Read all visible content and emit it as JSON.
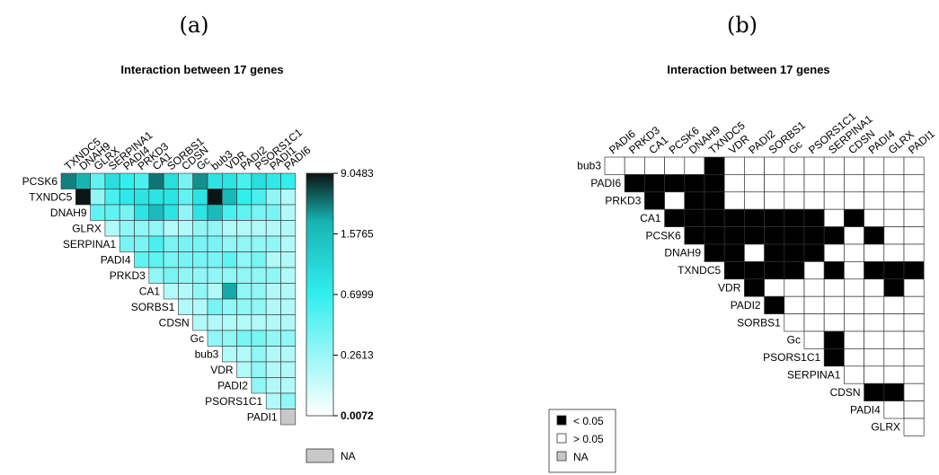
{
  "panels": {
    "a": {
      "label": "(a)"
    },
    "b": {
      "label": "(b)"
    }
  },
  "chart_data": [
    {
      "type": "heatmap",
      "title": "Interaction between 17 genes",
      "shape": "upper-triangular",
      "row_labels": [
        "PCSK6",
        "TXNDC5",
        "DNAH9",
        "GLRX",
        "SERPINA1",
        "PADI4",
        "PRKD3",
        "CA1",
        "SORBS1",
        "CDSN",
        "Gc",
        "bub3",
        "VDR",
        "PADI2",
        "PSORS1C1",
        "PADI1"
      ],
      "col_labels": [
        "TXNDC5",
        "DNAH9",
        "GLRX",
        "SERPINA1",
        "PADI4",
        "PRKD3",
        "CA1",
        "SORBS1",
        "CDSN",
        "Gc",
        "bub3",
        "VDR",
        "PADI2",
        "PSORS1C1",
        "PADI1",
        "PADI6"
      ],
      "values": [
        [
          5.0,
          3.0,
          0.5,
          1.0,
          0.7,
          0.6,
          5.5,
          1.0,
          0.4,
          4.5,
          0.9,
          0.9,
          0.6,
          1.0,
          0.8,
          0.7
        ],
        [
          9.0,
          0.3,
          0.6,
          0.8,
          0.9,
          0.9,
          0.9,
          0.5,
          0.9,
          9.0,
          2.5,
          0.7,
          0.6,
          0.3,
          0.2
        ],
        [
          0.5,
          0.5,
          0.4,
          0.9,
          2.0,
          0.9,
          0.3,
          0.9,
          2.0,
          0.6,
          0.5,
          0.4,
          0.4,
          0.2
        ],
        [
          0.2,
          0.3,
          0.3,
          0.3,
          0.2,
          0.2,
          0.3,
          0.3,
          0.2,
          0.2,
          0.2,
          0.2,
          0.2
        ],
        [
          0.4,
          0.4,
          0.6,
          0.4,
          0.4,
          0.4,
          0.4,
          0.3,
          0.3,
          0.3,
          0.3,
          0.2
        ],
        [
          0.5,
          0.5,
          0.4,
          0.4,
          0.4,
          0.4,
          0.5,
          0.3,
          0.4,
          0.2,
          0.2
        ],
        [
          0.3,
          0.4,
          0.3,
          0.3,
          0.3,
          0.3,
          0.3,
          0.3,
          0.3,
          0.2
        ],
        [
          0.2,
          0.2,
          0.3,
          0.2,
          3.5,
          0.3,
          0.3,
          0.2,
          0.2
        ],
        [
          0.2,
          0.2,
          0.4,
          0.3,
          0.3,
          0.3,
          0.2,
          0.2
        ],
        [
          0.2,
          0.2,
          0.2,
          0.2,
          0.2,
          0.2,
          0.2
        ],
        [
          0.3,
          0.3,
          0.4,
          0.4,
          0.3,
          0.3
        ],
        [
          0.2,
          0.2,
          0.3,
          0.2,
          0.2
        ],
        [
          0.2,
          0.3,
          0.2,
          0.2
        ],
        [
          0.3,
          0.2,
          0.2
        ],
        [
          0.2,
          0.3
        ],
        [
          null
        ]
      ],
      "colorbar": {
        "ticks": [
          "9.0483",
          "1.5765",
          "0.6999",
          "0.2613",
          "0.0072"
        ],
        "colors": {
          "high": "#0a1414",
          "mid": "#18b4b4",
          "low_cyan": "#33eeee",
          "low": "#ffffff"
        }
      },
      "na": {
        "label": "NA",
        "color": "#c8c8c8"
      }
    },
    {
      "type": "heatmap",
      "title": "Interaction between 17 genes",
      "shape": "upper-triangular",
      "row_labels": [
        "bub3",
        "PADI6",
        "PRKD3",
        "CA1",
        "PCSK6",
        "DNAH9",
        "TXNDC5",
        "VDR",
        "PADI2",
        "SORBS1",
        "Gc",
        "PSORS1C1",
        "SERPINA1",
        "CDSN",
        "PADI4",
        "GLRX"
      ],
      "col_labels": [
        "PADI6",
        "PRKD3",
        "CA1",
        "PCSK6",
        "DNAH9",
        "TXNDC5",
        "VDR",
        "PADI2",
        "SORBS1",
        "Gc",
        "PSORS1C1",
        "SERPINA1",
        "CDSN",
        "PADI4",
        "GLRX",
        "PADI1"
      ],
      "significant": [
        [
          0,
          0,
          0,
          0,
          0,
          1,
          0,
          0,
          0,
          0,
          0,
          0,
          0,
          0,
          0,
          0
        ],
        [
          1,
          1,
          1,
          1,
          1,
          0,
          0,
          0,
          0,
          0,
          0,
          0,
          0,
          0,
          0
        ],
        [
          1,
          0,
          1,
          1,
          0,
          0,
          0,
          0,
          0,
          0,
          0,
          0,
          0,
          0
        ],
        [
          1,
          1,
          1,
          1,
          1,
          1,
          1,
          1,
          0,
          1,
          0,
          0,
          0
        ],
        [
          1,
          1,
          1,
          1,
          1,
          1,
          1,
          1,
          0,
          1,
          0,
          0
        ],
        [
          1,
          1,
          0,
          1,
          1,
          1,
          0,
          0,
          0,
          0,
          0
        ],
        [
          1,
          1,
          1,
          1,
          0,
          1,
          0,
          1,
          1,
          1
        ],
        [
          1,
          0,
          0,
          0,
          0,
          0,
          0,
          1,
          0
        ],
        [
          1,
          0,
          0,
          0,
          0,
          0,
          0,
          0
        ],
        [
          0,
          0,
          0,
          0,
          0,
          0,
          0
        ],
        [
          0,
          1,
          0,
          0,
          0,
          0
        ],
        [
          1,
          0,
          0,
          0,
          0
        ],
        [
          0,
          0,
          0,
          0
        ],
        [
          1,
          1,
          0
        ],
        [
          0,
          0
        ],
        [
          0
        ]
      ],
      "legend": [
        {
          "label": "< 0.05",
          "color": "#000000"
        },
        {
          "label": "> 0.05",
          "color": "#ffffff"
        },
        {
          "label": "NA",
          "color": "#c8c8c8"
        }
      ]
    }
  ]
}
